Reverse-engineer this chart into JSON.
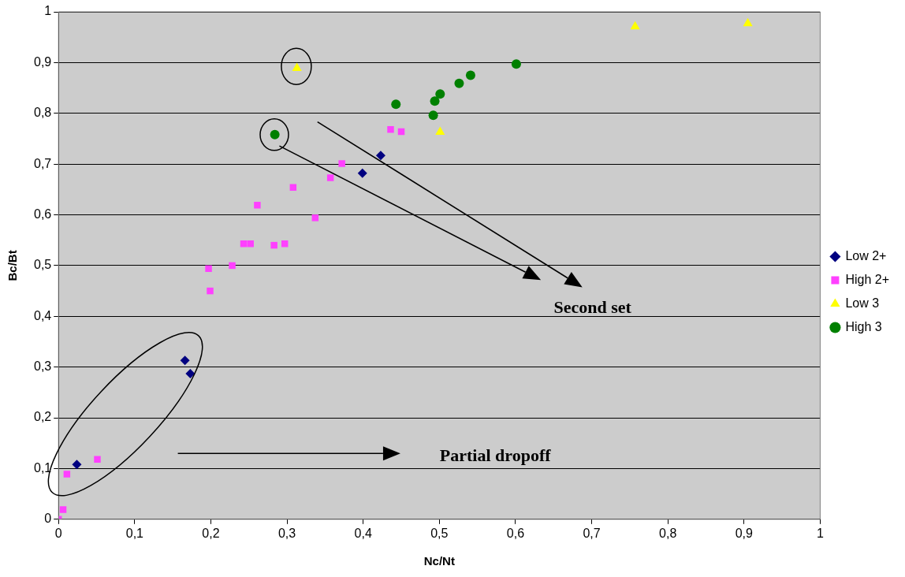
{
  "chart_data": {
    "type": "scatter",
    "xlabel": "Nc/Nt",
    "ylabel": "Bc/Bt",
    "xlim": [
      0,
      1
    ],
    "ylim": [
      0,
      1
    ],
    "xticks": [
      0,
      {
        "value": 0.1,
        "label": "0,1"
      },
      {
        "value": 0.2,
        "label": "0,2"
      },
      {
        "value": 0.3,
        "label": "0,3"
      },
      {
        "value": 0.4,
        "label": "0,4"
      },
      {
        "value": 0.5,
        "label": "0,5"
      },
      {
        "value": 0.6,
        "label": "0,6"
      },
      {
        "value": 0.7,
        "label": "0,7"
      },
      {
        "value": 0.8,
        "label": "0,8"
      },
      {
        "value": 0.9,
        "label": "0,9"
      },
      1
    ],
    "yticks": [
      0,
      {
        "value": 0.1,
        "label": "0,1"
      },
      {
        "value": 0.2,
        "label": "0,2"
      },
      {
        "value": 0.3,
        "label": "0,3"
      },
      {
        "value": 0.4,
        "label": "0,4"
      },
      {
        "value": 0.5,
        "label": "0,5"
      },
      {
        "value": 0.6,
        "label": "0,6"
      },
      {
        "value": 0.7,
        "label": "0,7"
      },
      {
        "value": 0.8,
        "label": "0,8"
      },
      {
        "value": 0.9,
        "label": "0,9"
      },
      1
    ],
    "grid": "y",
    "legend": "right",
    "series": [
      {
        "name": "Low 2+",
        "color": "#000080",
        "marker": "diamond",
        "x": [
          0.024,
          0.166,
          0.173,
          0.399,
          0.423
        ],
        "values": [
          0.108,
          0.313,
          0.287,
          0.682,
          0.717
        ]
      },
      {
        "name": "High 2+",
        "color": "#ff40ff",
        "marker": "square",
        "x": [
          0,
          0.006,
          0.011,
          0.051,
          0.197,
          0.199,
          0.228,
          0.243,
          0.252,
          0.283,
          0.297,
          0.261,
          0.308,
          0.337,
          0.357,
          0.372,
          0.436,
          0.45
        ],
        "values": [
          0,
          0.019,
          0.089,
          0.118,
          0.494,
          0.45,
          0.5,
          0.543,
          0.543,
          0.54,
          0.543,
          0.619,
          0.654,
          0.594,
          0.673,
          0.701,
          0.768,
          0.764
        ]
      },
      {
        "name": "Low 3",
        "color": "#ffff00",
        "marker": "triangle",
        "x": [
          0.313,
          0.501,
          0.757,
          0.905
        ],
        "values": [
          0.889,
          0.763,
          0.971,
          0.977
        ]
      },
      {
        "name": "High 3",
        "color": "#008000",
        "marker": "circle",
        "x": [
          0.284,
          0.443,
          0.492,
          0.494,
          0.501,
          0.526,
          0.541,
          0.601
        ],
        "values": [
          0.758,
          0.818,
          0.796,
          0.824,
          0.838,
          0.859,
          0.875,
          0.897
        ]
      }
    ],
    "annotations": [
      "Second set",
      "Partial dropoff"
    ]
  }
}
